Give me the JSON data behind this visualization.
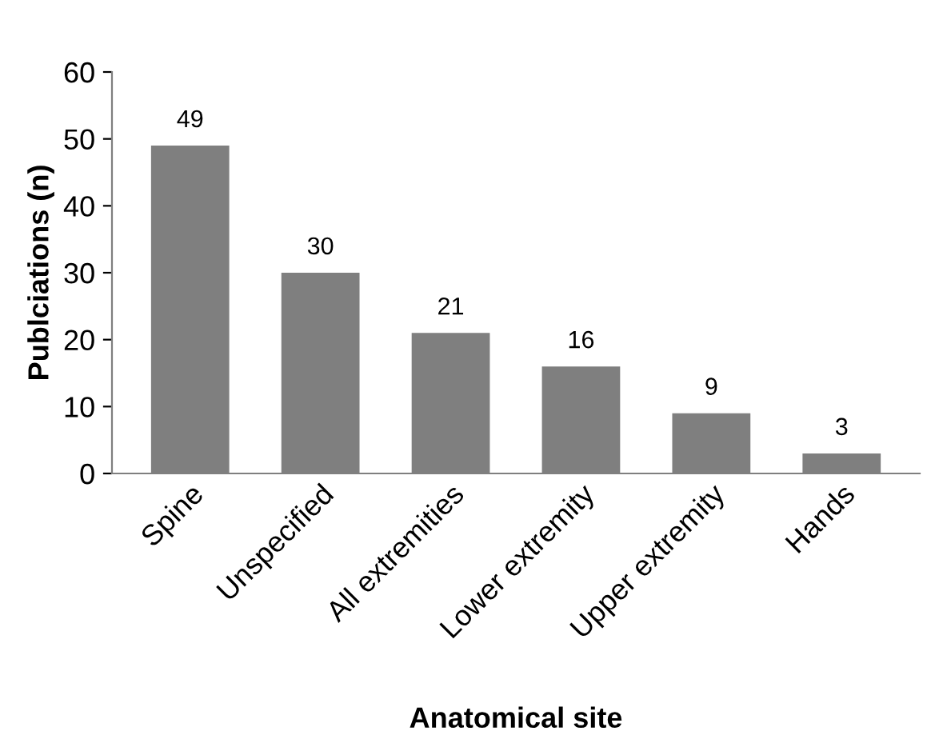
{
  "chart_data": {
    "type": "bar",
    "xlabel": "Anatomical site",
    "ylabel": "Publciations (n)",
    "categories": [
      "Spine",
      "Unspecified",
      "All extremities",
      "Lower extremity",
      "Upper extremity",
      "Hands"
    ],
    "values": [
      49,
      30,
      21,
      16,
      9,
      3
    ],
    "color": "#7f7f7f",
    "ylim": [
      0,
      60
    ],
    "yticks": [
      0,
      10,
      20,
      30,
      40,
      50,
      60
    ],
    "data_labels": true,
    "grid": false,
    "legend": false
  }
}
